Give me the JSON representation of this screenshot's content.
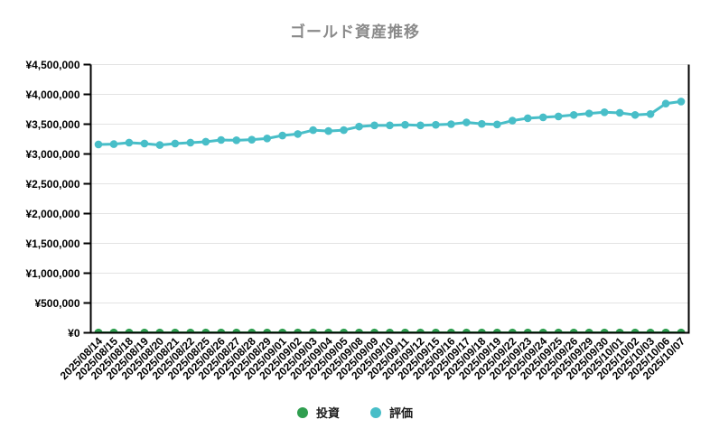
{
  "title": {
    "text": "ゴールド資産推移"
  },
  "colors": {
    "background": "#ffffff",
    "title": "#8a8a8a",
    "axis": "#000000",
    "grid": "#e3e3e3",
    "tick_label": "#000000",
    "legend_text": "#1a1a1a",
    "invest": "#2f9e4f",
    "eval": "#48bec8"
  },
  "chart_data": {
    "type": "line",
    "title": "ゴールド資産推移",
    "xlabel": "",
    "ylabel": "",
    "ylim": [
      0,
      4500000
    ],
    "ytick_step": 500000,
    "grid": true,
    "legend_position": "bottom",
    "y_tick_labels": [
      "¥0",
      "¥500,000",
      "¥1,000,000",
      "¥1,500,000",
      "¥2,000,000",
      "¥2,500,000",
      "¥3,000,000",
      "¥3,500,000",
      "¥4,000,000",
      "¥4,500,000"
    ],
    "x": [
      "2025/08/14",
      "2025/08/15",
      "2025/08/18",
      "2025/08/19",
      "2025/08/20",
      "2025/08/21",
      "2025/08/22",
      "2025/08/25",
      "2025/08/26",
      "2025/08/27",
      "2025/08/28",
      "2025/08/29",
      "2025/09/01",
      "2025/09/02",
      "2025/09/03",
      "2025/09/04",
      "2025/09/05",
      "2025/09/08",
      "2025/09/09",
      "2025/09/10",
      "2025/09/11",
      "2025/09/12",
      "2025/09/15",
      "2025/09/16",
      "2025/09/17",
      "2025/09/18",
      "2025/09/19",
      "2025/09/22",
      "2025/09/23",
      "2025/09/24",
      "2025/09/25",
      "2025/09/26",
      "2025/09/29",
      "2025/09/30",
      "2025/10/01",
      "2025/10/02",
      "2025/10/03",
      "2025/10/06",
      "2025/10/07"
    ],
    "series": [
      {
        "name": "投資",
        "color": "#2f9e4f",
        "values": [
          0,
          0,
          0,
          0,
          0,
          0,
          0,
          0,
          0,
          0,
          0,
          0,
          0,
          0,
          0,
          0,
          0,
          0,
          0,
          0,
          0,
          0,
          0,
          0,
          0,
          0,
          0,
          0,
          0,
          0,
          0,
          0,
          0,
          0,
          0,
          0,
          0,
          0,
          0
        ]
      },
      {
        "name": "評価",
        "color": "#48bec8",
        "values": [
          3160000,
          3165000,
          3190000,
          3175000,
          3150000,
          3175000,
          3190000,
          3205000,
          3235000,
          3230000,
          3240000,
          3260000,
          3310000,
          3335000,
          3400000,
          3385000,
          3400000,
          3460000,
          3480000,
          3480000,
          3490000,
          3480000,
          3490000,
          3500000,
          3530000,
          3505000,
          3495000,
          3560000,
          3600000,
          3615000,
          3630000,
          3655000,
          3680000,
          3700000,
          3690000,
          3655000,
          3670000,
          3845000,
          3880000
        ]
      }
    ]
  },
  "legend": {
    "items": [
      {
        "label": "投資",
        "color": "#2f9e4f"
      },
      {
        "label": "評価",
        "color": "#48bec8"
      }
    ]
  }
}
